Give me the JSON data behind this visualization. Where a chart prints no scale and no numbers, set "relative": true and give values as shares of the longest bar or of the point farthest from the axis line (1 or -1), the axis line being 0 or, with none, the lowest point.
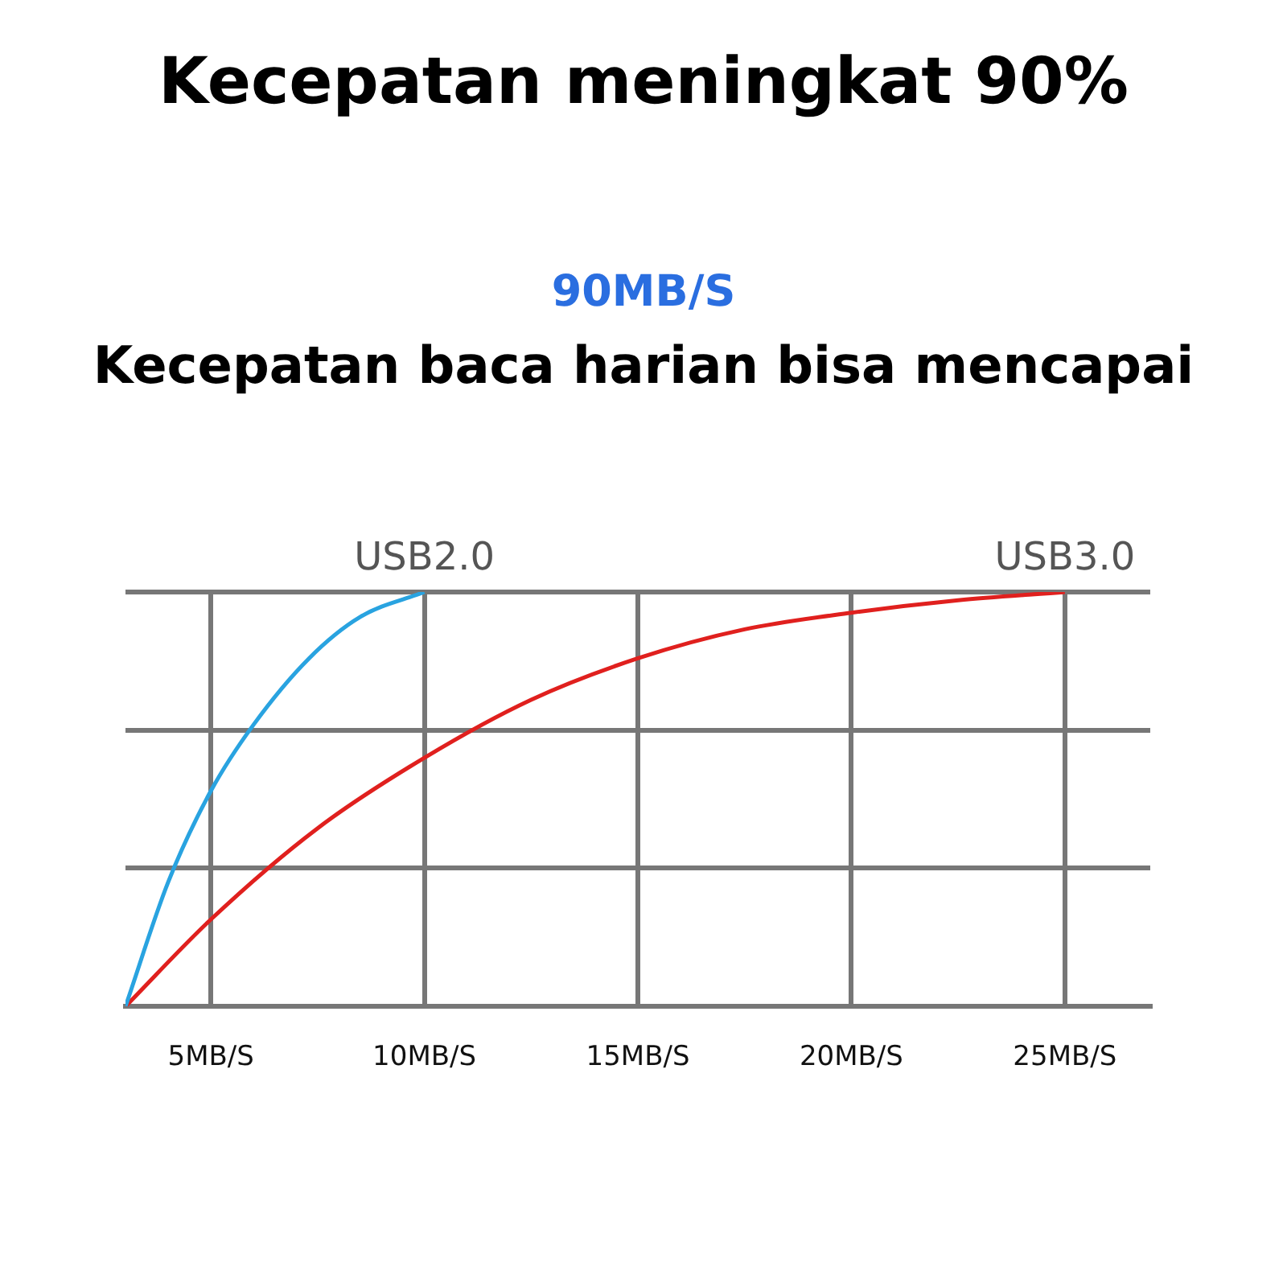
{
  "chart_data": {
    "type": "line",
    "title": "Kecepatan meningkat 90%",
    "subtitle": "90MB/S",
    "annotations": [
      "Kecepatan baca harian bisa mencapai"
    ],
    "relative": true,
    "grid": true,
    "marker": "none",
    "xlim": [
      3,
      27
    ],
    "xticks": [
      {
        "value": 5,
        "label": "5MB/S"
      },
      {
        "value": 10,
        "label": "10MB/S"
      },
      {
        "value": 15,
        "label": "15MB/S"
      },
      {
        "value": 20,
        "label": "20MB/S"
      },
      {
        "value": 25,
        "label": "25MB/S"
      }
    ],
    "series": [
      {
        "name": "USB2.0",
        "color": "#29a3e0",
        "x": [
          3,
          4,
          5,
          6,
          7.3,
          8.5,
          10
        ],
        "values": [
          0,
          0.3,
          0.52,
          0.68,
          0.84,
          0.94,
          1
        ]
      },
      {
        "name": "USB3.0",
        "color": "#e0201e",
        "x": [
          3,
          5,
          7.5,
          10,
          12.5,
          15,
          17.5,
          20,
          22.5,
          25
        ],
        "values": [
          0,
          0.21,
          0.43,
          0.6,
          0.74,
          0.84,
          0.91,
          0.95,
          0.98,
          1
        ]
      }
    ]
  }
}
